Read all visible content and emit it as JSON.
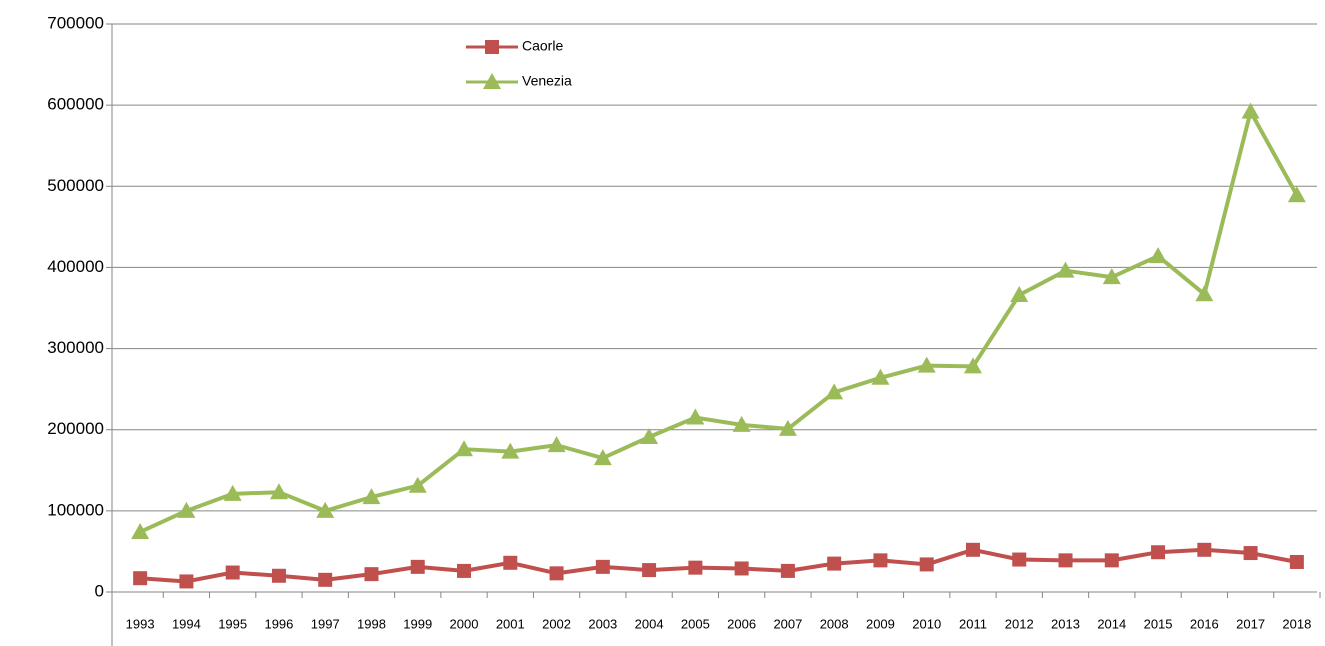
{
  "chart_data": {
    "type": "line",
    "categories": [
      "1993",
      "1994",
      "1995",
      "1996",
      "1997",
      "1998",
      "1999",
      "2000",
      "2001",
      "2002",
      "2003",
      "2004",
      "2005",
      "2006",
      "2007",
      "2008",
      "2009",
      "2010",
      "2011",
      "2012",
      "2013",
      "2014",
      "2015",
      "2016",
      "2017",
      "2018"
    ],
    "series": [
      {
        "name": "Caorle",
        "color": "#c0504d",
        "marker": "square",
        "values": [
          17000,
          13000,
          24000,
          20000,
          15000,
          22000,
          31000,
          26000,
          36000,
          23000,
          31000,
          27000,
          30000,
          29000,
          26000,
          35000,
          39000,
          34000,
          52000,
          40000,
          39000,
          39000,
          49000,
          52000,
          48000,
          37000
        ]
      },
      {
        "name": "Venezia",
        "color": "#9bbb59",
        "marker": "triangle",
        "values": [
          74000,
          100000,
          121000,
          123000,
          100000,
          117000,
          131000,
          176000,
          173000,
          181000,
          165000,
          191000,
          215000,
          206000,
          201000,
          246000,
          264000,
          279000,
          278000,
          366000,
          396000,
          388000,
          414000,
          367000,
          592000,
          489000
        ]
      }
    ],
    "ylim": [
      0,
      700000
    ],
    "yticks": [
      0,
      100000,
      200000,
      300000,
      400000,
      500000,
      600000,
      700000
    ],
    "grid": true
  }
}
